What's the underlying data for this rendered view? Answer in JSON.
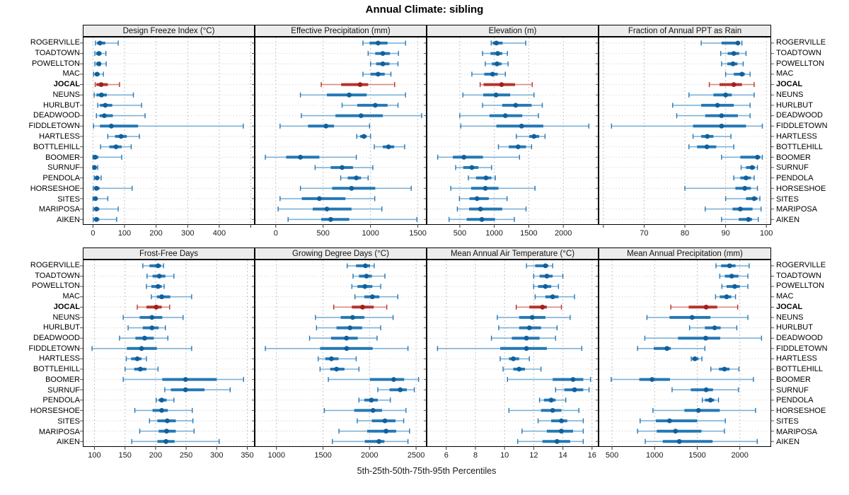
{
  "chart_data": {
    "type": "dotplot-percentiles",
    "title": "Annual Climate: sibling",
    "xlabel": "5th-25th-50th-75th-95th Percentiles",
    "percentile_labels": [
      "5th",
      "25th",
      "50th",
      "75th",
      "95th"
    ],
    "legend_position": "none",
    "grid": "dashed-vertical-and-dotted-rows",
    "highlight": "JOCAL",
    "categories": [
      "ROGERVILLE",
      "TOADTOWN",
      "POWELLTON",
      "MAC",
      "JOCAL",
      "NEUNS",
      "HURLBUT",
      "DEADWOOD",
      "FIDDLETOWN",
      "HARTLESS",
      "BOTTLEHILL",
      "BOOMER",
      "SURNUF",
      "PENDOLA",
      "HORSESHOE",
      "SITES",
      "MARIPOSA",
      "AIKEN"
    ],
    "panels": [
      {
        "title": "Design Freeze Index (°C)",
        "xlim": [
          -30,
          510
        ],
        "ticks": [
          0,
          100,
          200,
          300,
          400
        ],
        "minor_ticks": [
          500
        ],
        "series": [
          [
            8,
            13,
            22,
            39,
            80
          ],
          [
            6,
            10,
            19,
            27,
            41
          ],
          [
            6,
            10,
            19,
            26,
            42
          ],
          [
            2,
            5,
            13,
            21,
            33
          ],
          [
            7,
            11,
            26,
            47,
            84
          ],
          [
            4,
            11,
            27,
            44,
            128
          ],
          [
            15,
            22,
            39,
            61,
            154
          ],
          [
            11,
            21,
            36,
            63,
            165
          ],
          [
            2,
            22,
            58,
            143,
            476
          ],
          [
            47,
            70,
            89,
            107,
            147
          ],
          [
            24,
            52,
            73,
            91,
            121
          ],
          [
            0,
            2,
            7,
            17,
            91
          ],
          [
            0,
            1,
            5,
            10,
            15
          ],
          [
            4,
            7,
            13,
            19,
            26
          ],
          [
            1,
            4,
            11,
            21,
            124
          ],
          [
            0,
            2,
            8,
            15,
            47
          ],
          [
            1,
            4,
            11,
            20,
            80
          ],
          [
            1,
            4,
            11,
            20,
            75
          ]
        ]
      },
      {
        "title": "Effective Precipitation (mm)",
        "xlim": [
          -215,
          1585
        ],
        "ticks": [
          0,
          500,
          1000,
          1500
        ],
        "minor_ticks": [],
        "series": [
          [
            920,
            990,
            1080,
            1180,
            1370
          ],
          [
            975,
            1050,
            1130,
            1205,
            1295
          ],
          [
            1000,
            1060,
            1130,
            1200,
            1290
          ],
          [
            920,
            1000,
            1080,
            1150,
            1215
          ],
          [
            480,
            690,
            890,
            975,
            1255
          ],
          [
            260,
            540,
            775,
            960,
            1370
          ],
          [
            700,
            860,
            1050,
            1180,
            1290
          ],
          [
            270,
            630,
            900,
            1130,
            1540
          ],
          [
            45,
            340,
            530,
            615,
            990
          ],
          [
            855,
            890,
            930,
            960,
            1000
          ],
          [
            1040,
            1130,
            1190,
            1250,
            1360
          ],
          [
            -110,
            110,
            260,
            460,
            850
          ],
          [
            415,
            580,
            700,
            815,
            1025
          ],
          [
            685,
            760,
            850,
            900,
            975
          ],
          [
            260,
            595,
            800,
            1050,
            1430
          ],
          [
            45,
            275,
            460,
            735,
            1045
          ],
          [
            25,
            390,
            540,
            800,
            1120
          ],
          [
            130,
            480,
            580,
            775,
            1490
          ]
        ]
      },
      {
        "title": "Elevation (m)",
        "xlim": [
          30,
          2500
        ],
        "ticks": [
          500,
          1000,
          1500,
          2000
        ],
        "minor_ticks": [],
        "series": [
          [
            955,
            975,
            1030,
            1120,
            1455
          ],
          [
            830,
            945,
            1050,
            1115,
            1190
          ],
          [
            870,
            965,
            1040,
            1105,
            1200
          ],
          [
            675,
            855,
            975,
            1050,
            1160
          ],
          [
            795,
            845,
            1105,
            1300,
            1550
          ],
          [
            545,
            840,
            1025,
            1230,
            1575
          ],
          [
            830,
            1115,
            1310,
            1540,
            1695
          ],
          [
            500,
            930,
            1160,
            1405,
            1640
          ],
          [
            515,
            1030,
            1395,
            1710,
            2370
          ],
          [
            1320,
            1505,
            1575,
            1650,
            1735
          ],
          [
            1060,
            1210,
            1345,
            1460,
            1540
          ],
          [
            180,
            400,
            560,
            835,
            1365
          ],
          [
            440,
            550,
            675,
            770,
            960
          ],
          [
            625,
            735,
            880,
            958,
            1015
          ],
          [
            370,
            665,
            870,
            1060,
            1590
          ],
          [
            495,
            640,
            750,
            920,
            1185
          ],
          [
            465,
            635,
            800,
            1115,
            1460
          ],
          [
            345,
            600,
            820,
            1010,
            1290
          ]
        ]
      },
      {
        "title": "Fraction of Annual PPT as Rain",
        "xlim": [
          59,
          101
        ],
        "ticks": [
          70,
          80,
          90,
          100
        ],
        "minor_ticks": [
          60
        ],
        "series": [
          [
            84,
            89,
            93,
            93.5,
            94
          ],
          [
            88.8,
            90.5,
            92,
            93.3,
            95
          ],
          [
            89,
            90.4,
            91.8,
            92.9,
            94.3
          ],
          [
            90,
            92,
            94,
            94.7,
            96
          ],
          [
            86,
            88.5,
            92,
            94,
            97
          ],
          [
            81,
            87,
            90,
            91.5,
            97
          ],
          [
            77,
            84,
            88,
            92,
            96
          ],
          [
            78,
            85,
            89,
            93,
            96
          ],
          [
            62,
            82,
            89,
            95,
            99
          ],
          [
            82,
            84,
            85.5,
            87,
            91.3
          ],
          [
            81,
            83,
            85.4,
            87.7,
            92
          ],
          [
            89,
            93.6,
            97.8,
            98.5,
            99
          ],
          [
            93.8,
            95,
            96.5,
            97.2,
            97.8
          ],
          [
            92,
            93.6,
            95,
            96.2,
            97
          ],
          [
            80,
            92.4,
            94.7,
            96.2,
            97.8
          ],
          [
            90,
            95,
            97,
            97.8,
            98.4
          ],
          [
            85,
            91.7,
            93.6,
            96.6,
            98.7
          ],
          [
            89,
            93.2,
            95.6,
            96.5,
            98
          ]
        ]
      },
      {
        "title": "Frost-Free Days",
        "xlim": [
          82,
          361
        ],
        "ticks": [
          100,
          150,
          200,
          250,
          300,
          350
        ],
        "minor_ticks": [],
        "series": [
          [
            179,
            190,
            204,
            209,
            213
          ],
          [
            186,
            195,
            206,
            216,
            230
          ],
          [
            185,
            193,
            204,
            210,
            214
          ],
          [
            193,
            202,
            210,
            224,
            259
          ],
          [
            170,
            185,
            201,
            210,
            223
          ],
          [
            147,
            174,
            194,
            211,
            245
          ],
          [
            155,
            179,
            194,
            205,
            216
          ],
          [
            141,
            167,
            182,
            197,
            220
          ],
          [
            96,
            153,
            177,
            202,
            259
          ],
          [
            152,
            160,
            170,
            177,
            185
          ],
          [
            150,
            165,
            175,
            185,
            204
          ],
          [
            147,
            211,
            249,
            300,
            344
          ],
          [
            215,
            225,
            249,
            280,
            322
          ],
          [
            201,
            205,
            210,
            218,
            230
          ],
          [
            166,
            195,
            210,
            220,
            260
          ],
          [
            190,
            203,
            219,
            233,
            261
          ],
          [
            174,
            205,
            218,
            233,
            263
          ],
          [
            161,
            203,
            217,
            231,
            304
          ]
        ]
      },
      {
        "title": "Growing Degree Days (°C)",
        "xlim": [
          773,
          2606
        ],
        "ticks": [
          1000,
          1500,
          2000,
          2500
        ],
        "minor_ticks": [],
        "series": [
          [
            1760,
            1855,
            1955,
            2005,
            2050
          ],
          [
            1823,
            1886,
            1967,
            2025,
            2165
          ],
          [
            1810,
            1870,
            1950,
            2030,
            2120
          ],
          [
            1843,
            1944,
            2030,
            2106,
            2304
          ],
          [
            1615,
            1810,
            1925,
            2045,
            2185
          ],
          [
            1418,
            1690,
            1818,
            1944,
            2253
          ],
          [
            1430,
            1645,
            1790,
            1920,
            2120
          ],
          [
            1355,
            1587,
            1752,
            1873,
            2081
          ],
          [
            880,
            1468,
            1754,
            2033,
            2413
          ],
          [
            1448,
            1524,
            1590,
            1666,
            1856
          ],
          [
            1468,
            1577,
            1645,
            1730,
            1886
          ],
          [
            1557,
            2005,
            2260,
            2372,
            2527
          ],
          [
            2089,
            2215,
            2330,
            2400,
            2481
          ],
          [
            1886,
            1944,
            2020,
            2089,
            2223
          ],
          [
            1514,
            1835,
            2038,
            2134,
            2392
          ],
          [
            1868,
            2025,
            2165,
            2279,
            2367
          ],
          [
            1671,
            1975,
            2177,
            2286,
            2430
          ],
          [
            1600,
            1949,
            2101,
            2160,
            2413
          ]
        ]
      },
      {
        "title": "Mean Annual Air Temperature (°C)",
        "xlim": [
          4.7,
          16.4
        ],
        "ticks": [
          6,
          8,
          10,
          12,
          14,
          16
        ],
        "minor_ticks": [],
        "series": [
          [
            11.5,
            12.1,
            12.8,
            13.0,
            13.3
          ],
          [
            12.0,
            12.4,
            12.9,
            13.3,
            14.0
          ],
          [
            12.0,
            12.3,
            12.8,
            13.2,
            13.7
          ],
          [
            12.1,
            12.8,
            13.3,
            13.7,
            14.8
          ],
          [
            10.8,
            11.7,
            12.6,
            12.9,
            13.9
          ],
          [
            9.5,
            11.0,
            11.9,
            12.8,
            14.5
          ],
          [
            9.6,
            11.0,
            11.7,
            12.5,
            13.6
          ],
          [
            9.1,
            10.5,
            11.5,
            12.4,
            13.5
          ],
          [
            5.4,
            9.7,
            11.5,
            12.9,
            15.3
          ],
          [
            9.7,
            10.3,
            10.6,
            11.0,
            11.7
          ],
          [
            9.9,
            10.6,
            11.0,
            11.4,
            12.5
          ],
          [
            10.2,
            13.3,
            14.7,
            15.4,
            15.9
          ],
          [
            13.5,
            14.1,
            14.8,
            15.4,
            15.8
          ],
          [
            12.4,
            12.7,
            13.2,
            13.5,
            14.2
          ],
          [
            10.3,
            12.5,
            13.3,
            13.9,
            15.1
          ],
          [
            12.3,
            13.2,
            13.9,
            14.3,
            15.4
          ],
          [
            11.2,
            12.9,
            13.9,
            14.7,
            15.4
          ],
          [
            10.9,
            12.6,
            13.6,
            14.5,
            15.4
          ]
        ]
      },
      {
        "title": "Mean Annual Precipitation (mm)",
        "xlim": [
          350,
          2360
        ],
        "ticks": [
          500,
          1000,
          1500,
          2000
        ],
        "minor_ticks": [],
        "series": [
          [
            1720,
            1780,
            1880,
            1950,
            2110
          ],
          [
            1765,
            1825,
            1905,
            1985,
            2095
          ],
          [
            1790,
            1845,
            1940,
            2000,
            2095
          ],
          [
            1715,
            1765,
            1845,
            1900,
            1950
          ],
          [
            1190,
            1400,
            1605,
            1735,
            1975
          ],
          [
            910,
            1175,
            1440,
            1655,
            2095
          ],
          [
            1410,
            1590,
            1705,
            1775,
            1965
          ],
          [
            885,
            1275,
            1600,
            1770,
            2255
          ],
          [
            800,
            990,
            1145,
            1190,
            1590
          ],
          [
            1430,
            1440,
            1472,
            1515,
            1555
          ],
          [
            1660,
            1755,
            1820,
            1880,
            1990
          ],
          [
            490,
            820,
            970,
            1180,
            2160
          ],
          [
            1205,
            1425,
            1605,
            1685,
            1985
          ],
          [
            1560,
            1590,
            1655,
            1700,
            1750
          ],
          [
            980,
            1350,
            1515,
            1765,
            2185
          ],
          [
            830,
            1015,
            1175,
            1500,
            1830
          ],
          [
            800,
            1025,
            1245,
            1550,
            1820
          ],
          [
            890,
            1095,
            1290,
            1680,
            2205
          ]
        ]
      }
    ],
    "colors": {
      "series_whisker": "#7fb2d8",
      "series_bar": "#2478b5",
      "series_dot": "#10609c",
      "highlight_whisker": "#d88a82",
      "highlight_bar": "#b4342c",
      "highlight_dot": "#a21f1f",
      "strip_bg": "#ececec",
      "panel_border": "#000000",
      "gridline": "#c2c2c2",
      "row_dots": "#cccccc",
      "tick": "#333333"
    }
  }
}
